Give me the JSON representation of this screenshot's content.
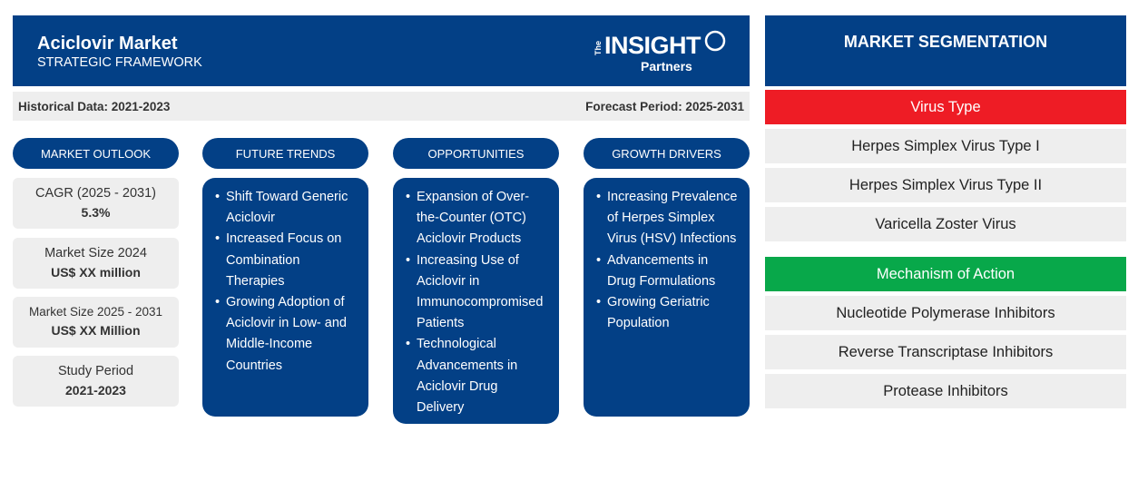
{
  "header": {
    "title": "Aciclovir Market",
    "subtitle": "STRATEGIC FRAMEWORK",
    "logo": {
      "the": "The",
      "insight": "INSIGHT",
      "partners": "Partners"
    }
  },
  "periods": {
    "historical": "Historical Data: 2021-2023",
    "forecast": "Forecast Period: 2025-2031"
  },
  "columns": {
    "outlook": "MARKET OUTLOOK",
    "trends": "FUTURE TRENDS",
    "opportunities": "OPPORTUNITIES",
    "drivers": "GROWTH DRIVERS"
  },
  "outlook": [
    {
      "label": "CAGR (2025 - 2031)",
      "value": "5.3%"
    },
    {
      "label": "Market Size 2024",
      "value": "US$ XX million"
    },
    {
      "label": "Market Size 2025 - 2031",
      "value": "US$ XX Million"
    },
    {
      "label": "Study Period",
      "value": "2021-2023"
    }
  ],
  "trends": [
    "Shift Toward Generic Aciclovir",
    "Increased Focus on Combination Therapies",
    "Growing Adoption of Aciclovir in Low- and Middle-Income Countries"
  ],
  "opportunities": [
    "Expansion of Over-the-Counter (OTC) Aciclovir Products",
    "Increasing Use of Aciclovir in Immunocompromised Patients",
    "Technological Advancements in Aciclovir Drug Delivery"
  ],
  "drivers": [
    "Increasing Prevalence of Herpes Simplex Virus (HSV) Infections",
    "Advancements in Drug Formulations",
    "Growing Geriatric Population"
  ],
  "segmentation": {
    "title": "MARKET SEGMENTATION",
    "categories": [
      {
        "name": "Virus Type",
        "color": "#ee1c25",
        "items": [
          "Herpes Simplex Virus Type I",
          "Herpes Simplex Virus Type II",
          "Varicella Zoster Virus"
        ]
      },
      {
        "name": "Mechanism of Action",
        "color": "#08a84a",
        "items": [
          "Nucleotide Polymerase Inhibitors",
          "Reverse Transcriptase Inhibitors",
          "Protease Inhibitors"
        ]
      }
    ]
  }
}
